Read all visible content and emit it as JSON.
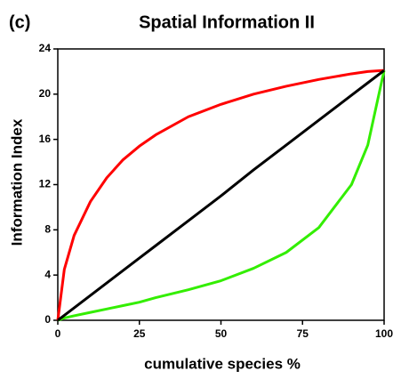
{
  "chart_data": {
    "type": "line",
    "panel_label": "(c)",
    "title": "Spatial Information II",
    "x_label": "cumulative species %",
    "y_label": "Information Index",
    "x": [
      0,
      2,
      5,
      10,
      15,
      20,
      25,
      30,
      40,
      50,
      60,
      70,
      80,
      90,
      95,
      100
    ],
    "series": [
      {
        "color": "#ff0000",
        "values": [
          0,
          4.5,
          7.5,
          10.5,
          12.6,
          14.2,
          15.4,
          16.4,
          18,
          19.1,
          20,
          20.7,
          21.3,
          21.8,
          22,
          22.1
        ]
      },
      {
        "color": "#33ee00",
        "values": [
          0,
          0.2,
          0.4,
          0.7,
          1,
          1.3,
          1.6,
          2,
          2.7,
          3.5,
          4.6,
          6,
          8.2,
          12,
          15.5,
          22.1
        ]
      },
      {
        "color": "#000000",
        "values": [
          0,
          0.44,
          1.1,
          2.2,
          3.3,
          4.4,
          5.5,
          6.6,
          8.8,
          11,
          13.3,
          15.5,
          17.7,
          19.9,
          21,
          22.1
        ]
      }
    ],
    "xlim": [
      0,
      100
    ],
    "xticks": [
      0,
      25,
      50,
      75,
      100
    ],
    "ylim": [
      0,
      24
    ],
    "yticks": [
      0,
      4,
      8,
      12,
      16,
      20,
      24
    ]
  }
}
